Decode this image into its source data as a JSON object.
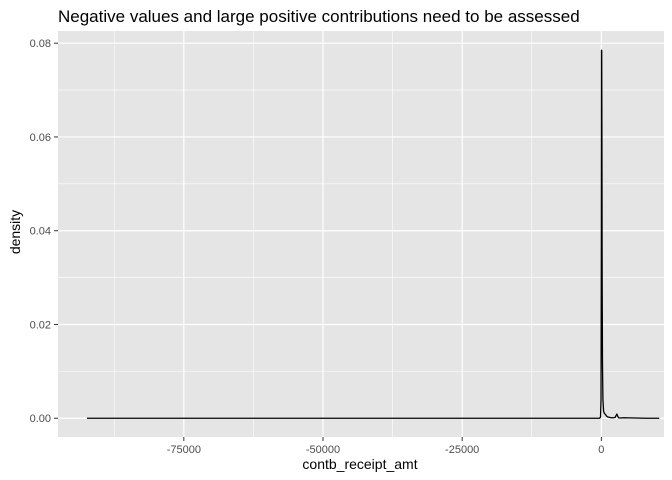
{
  "chart_data": {
    "type": "line",
    "title": "Negative values and large positive contributions need to be assessed",
    "xlabel": "contb_receipt_amt",
    "ylabel": "density",
    "xlim": [
      -97600,
      11250
    ],
    "ylim": [
      -0.004,
      0.0826
    ],
    "x_ticks": [
      -75000,
      -50000,
      -25000,
      0
    ],
    "x_tick_labels": [
      "-75000",
      "-50000",
      "-25000",
      "0"
    ],
    "y_ticks": [
      0.0,
      0.02,
      0.04,
      0.06,
      0.08
    ],
    "y_tick_labels": [
      "0.00",
      "0.02",
      "0.04",
      "0.06",
      "0.08"
    ],
    "grid": true,
    "series": [
      {
        "x": [
          -92400,
          -10000,
          -1500,
          -300,
          -150,
          -60,
          0,
          30,
          60,
          100,
          140,
          200,
          280,
          400,
          550,
          750,
          900,
          1100,
          1400,
          1800,
          2200,
          2500,
          2650,
          2800,
          2950,
          3100,
          3400,
          4000,
          6000,
          8000,
          10400
        ],
        "y": [
          0,
          0,
          0,
          0,
          0.0003,
          0.004,
          0.04,
          0.0785,
          0.0785,
          0.06,
          0.03,
          0.012,
          0.004,
          0.0015,
          0.001,
          0.0008,
          0.0005,
          0.0003,
          0.0002,
          0.0001,
          0.0001,
          0.0002,
          0.0006,
          0.0009,
          0.0004,
          0.0001,
          5e-05,
          0.0001,
          5e-05,
          0,
          0
        ]
      }
    ],
    "colors": {
      "panel_bg": "#e5e5e5",
      "grid_major": "#ffffff",
      "line": "#000000"
    }
  }
}
